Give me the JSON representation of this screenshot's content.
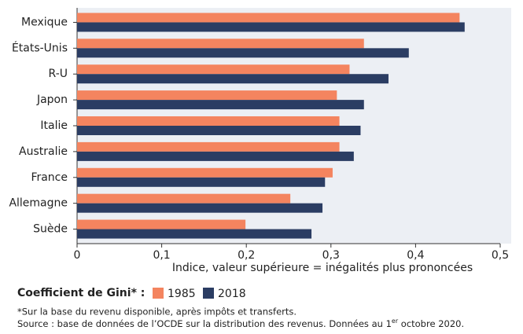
{
  "chart_data": {
    "type": "hbar",
    "categories": [
      "Mexique",
      "États-Unis",
      "R-U",
      "Japon",
      "Italie",
      "Australie",
      "France",
      "Allemagne",
      "Suède"
    ],
    "series": [
      {
        "name": "1985",
        "color": "#f4845f",
        "values": [
          0.452,
          0.339,
          0.322,
          0.307,
          0.31,
          0.31,
          0.302,
          0.252,
          0.199
        ]
      },
      {
        "name": "2018",
        "color": "#2b3d63",
        "values": [
          0.458,
          0.392,
          0.368,
          0.339,
          0.335,
          0.327,
          0.293,
          0.29,
          0.277
        ]
      }
    ],
    "xlim": [
      0,
      0.5
    ],
    "xticks": [
      0,
      {
        "value": 0.1,
        "label": "0,1"
      },
      {
        "value": 0.2,
        "label": "0,2"
      },
      {
        "value": 0.3,
        "label": "0,3"
      },
      {
        "value": 0.4,
        "label": "0,4"
      },
      {
        "value": 0.5,
        "label": "0,5"
      }
    ],
    "xlabel": "Indice, valeur supérieure = inégalités plus prononcées",
    "legend_title": "Coefficient de Gini* :",
    "notes": [
      "*Sur la base du revenu disponible, après impôts et transferts."
    ],
    "source": [
      "Source : base de données de l’OCDE sur la distribution des revenus. Données au 1",
      "er",
      " octobre 2020."
    ]
  }
}
